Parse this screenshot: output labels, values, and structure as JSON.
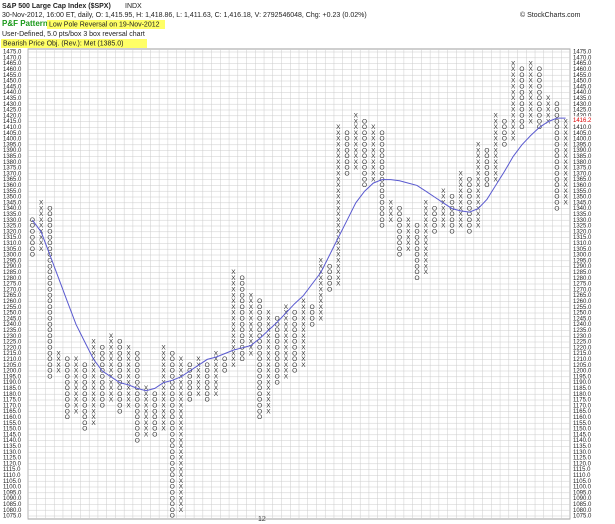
{
  "chart_data": {
    "type": "pnf",
    "title": "S&P 500 Large Cap Index ($SPX)",
    "exchange": "INDX",
    "quote": "30-Nov-2012, 16:00 ET, daily, O: 1,415.95, H: 1,418.86, L: 1,411.63, C: 1,416.18, V: 2792546048, Chg: +0.23 (0.02%)",
    "pattern_label": "P&F Pattern",
    "pattern": "Low Pole Reversal on 19-Nov-2012",
    "settings": "User-Defined, 5.0 pts/box 3 box reversal chart",
    "objective": "Bearish Price Obj. (Rev.): Met (1385.0)",
    "copyright": "© StockCharts.com",
    "year_label": "12",
    "box_size": 5,
    "last_price": 1416.2,
    "grid": true,
    "ylim": [
      1075,
      1475
    ],
    "yticks": [
      {
        "value": 1075,
        "label": "1075.0"
      },
      {
        "value": 1080,
        "label": "1080.0"
      },
      {
        "value": 1085,
        "label": "1085.0"
      },
      {
        "value": 1090,
        "label": "1090.0"
      },
      {
        "value": 1095,
        "label": "1095.0"
      },
      {
        "value": 1100,
        "label": "1100.0"
      },
      {
        "value": 1105,
        "label": "1105.0"
      },
      {
        "value": 1110,
        "label": "1110.0"
      },
      {
        "value": 1115,
        "label": "1115.0"
      },
      {
        "value": 1120,
        "label": "1120.0"
      },
      {
        "value": 1125,
        "label": "1125.0"
      },
      {
        "value": 1130,
        "label": "1130.0"
      },
      {
        "value": 1135,
        "label": "1135.0"
      },
      {
        "value": 1140,
        "label": "1140.0"
      },
      {
        "value": 1145,
        "label": "1145.0"
      },
      {
        "value": 1150,
        "label": "1150.0"
      },
      {
        "value": 1155,
        "label": "1155.0"
      },
      {
        "value": 1160,
        "label": "1160.0"
      },
      {
        "value": 1165,
        "label": "1165.0"
      },
      {
        "value": 1170,
        "label": "1170.0"
      },
      {
        "value": 1175,
        "label": "1175.0"
      },
      {
        "value": 1180,
        "label": "1180.0"
      },
      {
        "value": 1185,
        "label": "1185.0"
      },
      {
        "value": 1190,
        "label": "1190.0"
      },
      {
        "value": 1195,
        "label": "1195.0"
      },
      {
        "value": 1200,
        "label": "1200.0"
      },
      {
        "value": 1205,
        "label": "1205.0"
      },
      {
        "value": 1210,
        "label": "1210.0"
      },
      {
        "value": 1215,
        "label": "1215.0"
      },
      {
        "value": 1220,
        "label": "1220.0"
      },
      {
        "value": 1225,
        "label": "1225.0"
      },
      {
        "value": 1230,
        "label": "1230.0"
      },
      {
        "value": 1235,
        "label": "1235.0"
      },
      {
        "value": 1240,
        "label": "1240.0"
      },
      {
        "value": 1245,
        "label": "1245.0"
      },
      {
        "value": 1250,
        "label": "1250.0"
      },
      {
        "value": 1255,
        "label": "1255.0"
      },
      {
        "value": 1260,
        "label": "1260.0"
      },
      {
        "value": 1265,
        "label": "1265.0"
      },
      {
        "value": 1270,
        "label": "1270.0"
      },
      {
        "value": 1275,
        "label": "1275.0"
      },
      {
        "value": 1280,
        "label": "1280.0"
      },
      {
        "value": 1285,
        "label": "1285.0"
      },
      {
        "value": 1290,
        "label": "1290.0"
      },
      {
        "value": 1295,
        "label": "1295.0"
      },
      {
        "value": 1300,
        "label": "1300.0"
      },
      {
        "value": 1305,
        "label": "1305.0"
      },
      {
        "value": 1310,
        "label": "1310.0"
      },
      {
        "value": 1315,
        "label": "1315.0"
      },
      {
        "value": 1320,
        "label": "1320.0"
      },
      {
        "value": 1325,
        "label": "1325.0"
      },
      {
        "value": 1330,
        "label": "1330.0"
      },
      {
        "value": 1335,
        "label": "1335.0"
      },
      {
        "value": 1340,
        "label": "1340.0"
      },
      {
        "value": 1345,
        "label": "1345.0"
      },
      {
        "value": 1350,
        "label": "1350.0"
      },
      {
        "value": 1355,
        "label": "1355.0"
      },
      {
        "value": 1360,
        "label": "1360.0"
      },
      {
        "value": 1365,
        "label": "1365.0"
      },
      {
        "value": 1370,
        "label": "1370.0"
      },
      {
        "value": 1375,
        "label": "1375.0"
      },
      {
        "value": 1380,
        "label": "1380.0"
      },
      {
        "value": 1385,
        "label": "1385.0"
      },
      {
        "value": 1390,
        "label": "1390.0"
      },
      {
        "value": 1395,
        "label": "1395.0"
      },
      {
        "value": 1400,
        "label": "1400.0"
      },
      {
        "value": 1405,
        "label": "1405.0"
      },
      {
        "value": 1410,
        "label": "1410.0"
      },
      {
        "value": 1415,
        "label": "1415.0"
      },
      {
        "value": 1420,
        "label": "1420.0"
      },
      {
        "value": 1425,
        "label": "1425.0"
      },
      {
        "value": 1430,
        "label": "1430.0"
      },
      {
        "value": 1435,
        "label": "1435.0"
      },
      {
        "value": 1440,
        "label": "1440.0"
      },
      {
        "value": 1445,
        "label": "1445.0"
      },
      {
        "value": 1450,
        "label": "1450.0"
      },
      {
        "value": 1455,
        "label": "1455.0"
      },
      {
        "value": 1460,
        "label": "1460.0"
      },
      {
        "value": 1465,
        "label": "1465.0"
      },
      {
        "value": 1470,
        "label": "1470.0"
      },
      {
        "value": 1475,
        "label": "1475.0"
      }
    ],
    "columns": [
      {
        "type": "O",
        "low": 1300,
        "high": 1330
      },
      {
        "type": "X",
        "low": 1305,
        "high": 1345
      },
      {
        "type": "O",
        "low": 1195,
        "high": 1340
      },
      {
        "type": "X",
        "low": 1200,
        "high": 1215
      },
      {
        "type": "O",
        "low": 1160,
        "high": 1210
      },
      {
        "type": "X",
        "low": 1165,
        "high": 1210
      },
      {
        "type": "O",
        "low": 1150,
        "high": 1205
      },
      {
        "type": "X",
        "low": 1155,
        "high": 1225
      },
      {
        "type": "O",
        "low": 1170,
        "high": 1220
      },
      {
        "type": "X",
        "low": 1175,
        "high": 1230
      },
      {
        "type": "O",
        "low": 1165,
        "high": 1225
      },
      {
        "type": "X",
        "low": 1170,
        "high": 1220
      },
      {
        "type": "O",
        "low": 1140,
        "high": 1215
      },
      {
        "type": "X",
        "low": 1145,
        "high": 1185
      },
      {
        "type": "O",
        "low": 1145,
        "high": 1180
      },
      {
        "type": "X",
        "low": 1150,
        "high": 1220
      },
      {
        "type": "O",
        "low": 1075,
        "high": 1215
      },
      {
        "type": "X",
        "low": 1080,
        "high": 1210
      },
      {
        "type": "O",
        "low": 1175,
        "high": 1205
      },
      {
        "type": "X",
        "low": 1180,
        "high": 1210
      },
      {
        "type": "O",
        "low": 1175,
        "high": 1205
      },
      {
        "type": "X",
        "low": 1180,
        "high": 1215
      },
      {
        "type": "O",
        "low": 1200,
        "high": 1210
      },
      {
        "type": "X",
        "low": 1205,
        "high": 1285
      },
      {
        "type": "O",
        "low": 1210,
        "high": 1280
      },
      {
        "type": "X",
        "low": 1215,
        "high": 1265
      },
      {
        "type": "O",
        "low": 1160,
        "high": 1260
      },
      {
        "type": "X",
        "low": 1165,
        "high": 1250
      },
      {
        "type": "O",
        "low": 1190,
        "high": 1245
      },
      {
        "type": "X",
        "low": 1195,
        "high": 1255
      },
      {
        "type": "O",
        "low": 1200,
        "high": 1250
      },
      {
        "type": "X",
        "low": 1205,
        "high": 1260
      },
      {
        "type": "O",
        "low": 1240,
        "high": 1255
      },
      {
        "type": "X",
        "low": 1245,
        "high": 1295
      },
      {
        "type": "O",
        "low": 1270,
        "high": 1290
      },
      {
        "type": "X",
        "low": 1275,
        "high": 1410
      },
      {
        "type": "O",
        "low": 1370,
        "high": 1405
      },
      {
        "type": "X",
        "low": 1375,
        "high": 1420
      },
      {
        "type": "O",
        "low": 1360,
        "high": 1415
      },
      {
        "type": "X",
        "low": 1365,
        "high": 1410
      },
      {
        "type": "O",
        "low": 1325,
        "high": 1405
      },
      {
        "type": "X",
        "low": 1330,
        "high": 1345
      },
      {
        "type": "O",
        "low": 1300,
        "high": 1340
      },
      {
        "type": "X",
        "low": 1305,
        "high": 1330
      },
      {
        "type": "O",
        "low": 1280,
        "high": 1325
      },
      {
        "type": "X",
        "low": 1285,
        "high": 1345
      },
      {
        "type": "O",
        "low": 1320,
        "high": 1340
      },
      {
        "type": "X",
        "low": 1325,
        "high": 1355
      },
      {
        "type": "O",
        "low": 1320,
        "high": 1350
      },
      {
        "type": "X",
        "low": 1325,
        "high": 1370
      },
      {
        "type": "O",
        "low": 1320,
        "high": 1365
      },
      {
        "type": "X",
        "low": 1325,
        "high": 1395
      },
      {
        "type": "O",
        "low": 1360,
        "high": 1390
      },
      {
        "type": "X",
        "low": 1365,
        "high": 1420
      },
      {
        "type": "O",
        "low": 1395,
        "high": 1415
      },
      {
        "type": "X",
        "low": 1400,
        "high": 1465
      },
      {
        "type": "O",
        "low": 1410,
        "high": 1460
      },
      {
        "type": "X",
        "low": 1415,
        "high": 1465
      },
      {
        "type": "O",
        "low": 1410,
        "high": 1460
      },
      {
        "type": "X",
        "low": 1415,
        "high": 1435
      },
      {
        "type": "O",
        "low": 1340,
        "high": 1430
      },
      {
        "type": "X",
        "low": 1345,
        "high": 1415
      }
    ],
    "moving_average": {
      "color": "#5a5ad0",
      "values": [
        1330,
        1320,
        1300,
        1280,
        1260,
        1240,
        1225,
        1210,
        1200,
        1195,
        1190,
        1188,
        1185,
        1183,
        1185,
        1190,
        1192,
        1195,
        1200,
        1205,
        1210,
        1212,
        1215,
        1218,
        1220,
        1222,
        1228,
        1235,
        1242,
        1250,
        1258,
        1265,
        1275,
        1285,
        1300,
        1315,
        1330,
        1345,
        1355,
        1362,
        1365,
        1365,
        1364,
        1362,
        1360,
        1355,
        1350,
        1345,
        1340,
        1338,
        1337,
        1340,
        1348,
        1360,
        1372,
        1385,
        1395,
        1403,
        1410,
        1415,
        1418,
        1418
      ]
    }
  }
}
